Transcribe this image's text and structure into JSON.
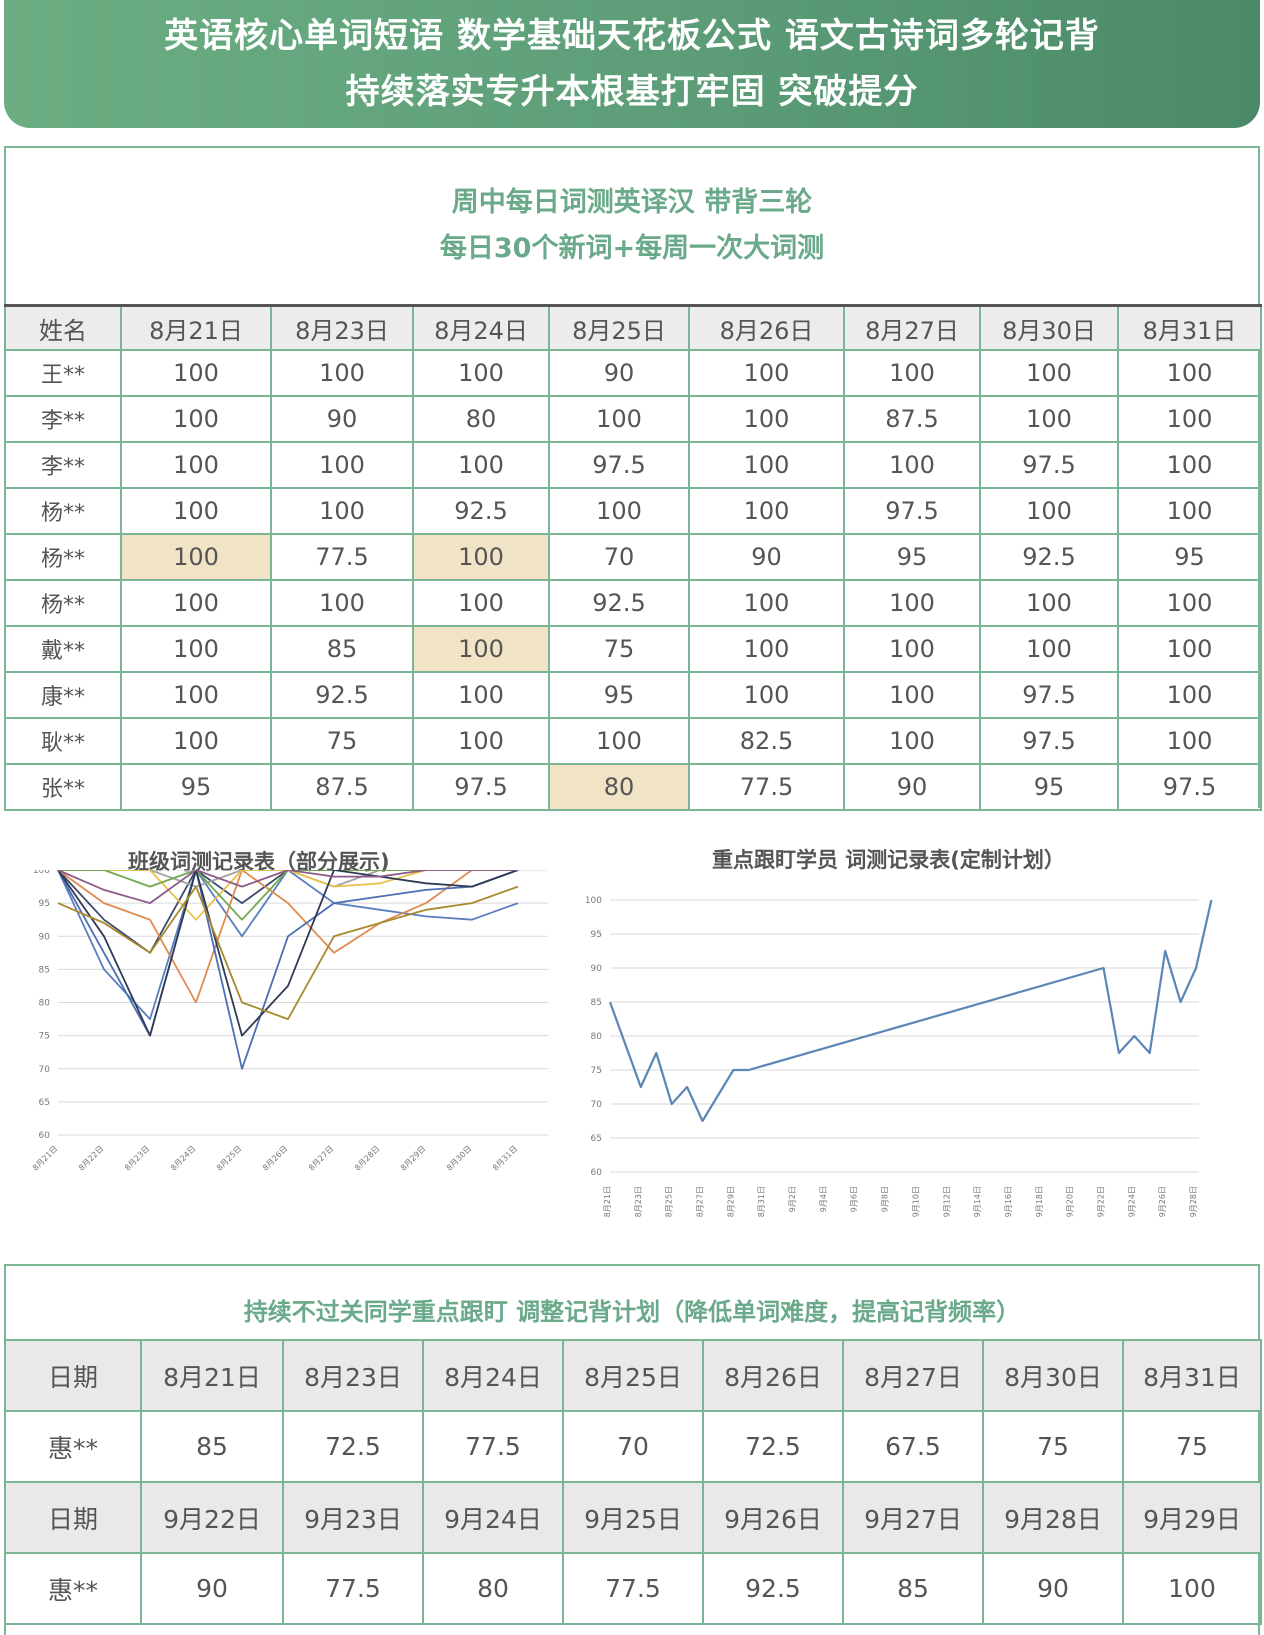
{
  "banner": {
    "line1": "英语核心单词短语 数学基础天花板公式 语文古诗词多轮记背",
    "line2": "持续落实专升本根基打牢固 突破提分"
  },
  "section1": {
    "title1": "周中每日词测英译汉 带背三轮",
    "title2": "每日30个新词+每周一次大词测"
  },
  "score_table": {
    "headers": [
      "姓名",
      "8月21日",
      "8月23日",
      "8月24日",
      "8月25日",
      "8月26日",
      "8月27日",
      "8月30日",
      "8月31日"
    ],
    "rows": [
      [
        "王**",
        "100",
        "100",
        "100",
        "90",
        "100",
        "100",
        "100",
        "100"
      ],
      [
        "李**",
        "100",
        "90",
        "80",
        "100",
        "100",
        "87.5",
        "100",
        "100"
      ],
      [
        "李**",
        "100",
        "100",
        "100",
        "97.5",
        "100",
        "100",
        "97.5",
        "100"
      ],
      [
        "杨**",
        "100",
        "100",
        "92.5",
        "100",
        "100",
        "97.5",
        "100",
        "100"
      ],
      [
        "杨**",
        "100",
        "77.5",
        "100",
        "70",
        "90",
        "95",
        "92.5",
        "95"
      ],
      [
        "杨**",
        "100",
        "100",
        "100",
        "92.5",
        "100",
        "100",
        "100",
        "100"
      ],
      [
        "戴**",
        "100",
        "85",
        "100",
        "75",
        "100",
        "100",
        "100",
        "100"
      ],
      [
        "康**",
        "100",
        "92.5",
        "100",
        "95",
        "100",
        "100",
        "97.5",
        "100"
      ],
      [
        "耿**",
        "100",
        "75",
        "100",
        "100",
        "82.5",
        "100",
        "97.5",
        "100"
      ],
      [
        "张**",
        "95",
        "87.5",
        "97.5",
        "80",
        "77.5",
        "90",
        "95",
        "97.5"
      ]
    ],
    "highlight_color": "#f1e3c6"
  },
  "chart_data": [
    {
      "type": "line",
      "title": "班级词测记录表（部分展示)",
      "x": [
        "8月21日",
        "8月22日",
        "8月23日",
        "8月24日",
        "8月25日",
        "8月26日",
        "8月27日",
        "8月28日",
        "8月29日",
        "8月30日",
        "8月31日"
      ],
      "ylim": [
        60,
        100
      ],
      "yticks": [
        "100",
        "95",
        "90",
        "85",
        "80",
        "75",
        "70",
        "65",
        "60"
      ],
      "grid": true,
      "series": [
        {
          "color": "#3d4a6b",
          "values": [
            100,
            92.5,
            87.5,
            100,
            95,
            100,
            100,
            100,
            100,
            100,
            100
          ]
        },
        {
          "color": "#5a7fbf",
          "values": [
            100,
            85,
            77.5,
            100,
            90,
            100,
            95,
            94,
            93,
            92.5,
            95
          ]
        },
        {
          "color": "#e08a4f",
          "values": [
            100,
            95,
            92.5,
            80,
            100,
            95,
            87.5,
            92,
            95,
            100,
            100
          ]
        },
        {
          "color": "#a3a3a3",
          "values": [
            100,
            100,
            100,
            97.5,
            100,
            100,
            97.5,
            100,
            100,
            100,
            100
          ]
        },
        {
          "color": "#e8c14a",
          "values": [
            100,
            100,
            100,
            92.5,
            100,
            100,
            97.5,
            98,
            100,
            100,
            100
          ]
        },
        {
          "color": "#4c6fb3",
          "values": [
            100,
            87.5,
            75,
            100,
            70,
            90,
            95,
            96,
            97,
            97.5,
            100
          ]
        },
        {
          "color": "#6fa84e",
          "values": [
            100,
            100,
            97.5,
            100,
            92.5,
            100,
            100,
            100,
            100,
            100,
            100
          ]
        },
        {
          "color": "#2f3a55",
          "values": [
            100,
            90,
            75,
            100,
            75,
            82.5,
            100,
            99,
            98,
            97.5,
            100
          ]
        },
        {
          "color": "#a8892e",
          "values": [
            95,
            92,
            87.5,
            97.5,
            80,
            77.5,
            90,
            92,
            94,
            95,
            97.5
          ]
        },
        {
          "color": "#8e5a8a",
          "values": [
            100,
            97,
            95,
            100,
            97.5,
            100,
            99,
            99,
            100,
            100,
            100
          ]
        }
      ]
    },
    {
      "type": "line",
      "title": "重点跟盯学员 词测记录表(定制计划）",
      "x": [
        "8月21日",
        "8月23日",
        "8月25日",
        "8月27日",
        "8月29日",
        "8月31日",
        "9月2日",
        "9月4日",
        "9月6日",
        "9月8日",
        "9月10日",
        "9月12日",
        "9月14日",
        "9月16日",
        "9月18日",
        "9月20日",
        "9月22日",
        "9月24日",
        "9月26日",
        "9月28日"
      ],
      "ylim": [
        60,
        100
      ],
      "yticks": [
        "100",
        "95",
        "90",
        "85",
        "80",
        "75",
        "70",
        "65",
        "60"
      ],
      "grid": true,
      "series": [
        {
          "color": "#5b86b5",
          "points": [
            [
              0,
              85
            ],
            [
              1,
              72.5
            ],
            [
              1.5,
              77.5
            ],
            [
              2,
              70
            ],
            [
              2.5,
              72.5
            ],
            [
              3,
              67.5
            ],
            [
              4,
              75
            ],
            [
              4.5,
              75
            ],
            [
              16,
              90
            ],
            [
              16.5,
              77.5
            ],
            [
              17,
              80
            ],
            [
              17.5,
              77.5
            ],
            [
              18,
              92.5
            ],
            [
              18.5,
              85
            ],
            [
              19,
              90
            ],
            [
              19.5,
              100
            ]
          ]
        }
      ]
    }
  ],
  "section3": {
    "title": "持续不过关同学重点跟盯 调整记背计划（降低单词难度，提高记背频率）"
  },
  "tracking_table": {
    "rows": [
      {
        "kind": "header",
        "cells": [
          "日期",
          "8月21日",
          "8月23日",
          "8月24日",
          "8月25日",
          "8月26日",
          "8月27日",
          "8月30日",
          "8月31日"
        ]
      },
      {
        "kind": "data",
        "cells": [
          "惠**",
          "85",
          "72.5",
          "77.5",
          "70",
          "72.5",
          "67.5",
          "75",
          "75"
        ]
      },
      {
        "kind": "header",
        "cells": [
          "日期",
          "9月22日",
          "9月23日",
          "9月24日",
          "9月25日",
          "9月26日",
          "9月27日",
          "9月28日",
          "9月29日"
        ]
      },
      {
        "kind": "data",
        "cells": [
          "惠**",
          "90",
          "77.5",
          "80",
          "77.5",
          "92.5",
          "85",
          "90",
          "100"
        ]
      }
    ]
  }
}
